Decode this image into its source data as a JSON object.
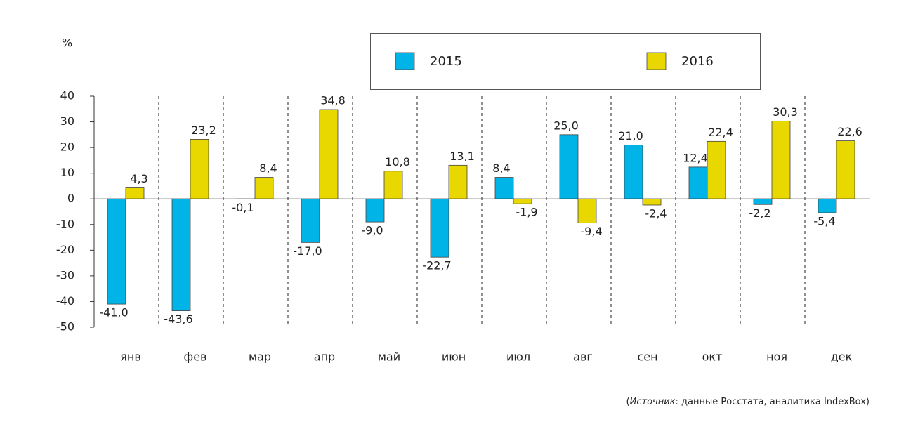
{
  "chart_data": {
    "type": "bar",
    "y_label": "%",
    "categories": [
      "янв",
      "фев",
      "мар",
      "апр",
      "май",
      "июн",
      "июл",
      "авг",
      "сен",
      "окт",
      "ноя",
      "дек"
    ],
    "series": [
      {
        "name": "2015",
        "color": "#00b4e8",
        "values": [
          -41.0,
          -43.6,
          -0.1,
          -17.0,
          -9.0,
          -22.7,
          8.4,
          25.0,
          21.0,
          12.4,
          -2.2,
          -5.4
        ],
        "value_labels": [
          "-41,0",
          "-43,6",
          "-0,1",
          "-17,0",
          "-9,0",
          "-22,7",
          "8,4",
          "25,0",
          "21,0",
          "12,4",
          "-2,2",
          "-5,4"
        ]
      },
      {
        "name": "2016",
        "color": "#e8d800",
        "values": [
          4.3,
          23.2,
          8.4,
          34.8,
          10.8,
          13.1,
          -1.9,
          -9.4,
          -2.4,
          22.4,
          30.3,
          22.6
        ],
        "value_labels": [
          "4,3",
          "23,2",
          "8,4",
          "34,8",
          "10,8",
          "13,1",
          "-1,9",
          "-9,4",
          "-2,4",
          "22,4",
          "30,3",
          "22,6"
        ]
      }
    ],
    "ylim": [
      -50,
      40
    ],
    "yticks": [
      -50,
      -40,
      -30,
      -20,
      -10,
      0,
      10,
      20,
      30,
      40
    ],
    "legend": "top",
    "source": [
      "(",
      "Источник",
      ": данные Росстата, аналитика IndexBox)"
    ]
  }
}
